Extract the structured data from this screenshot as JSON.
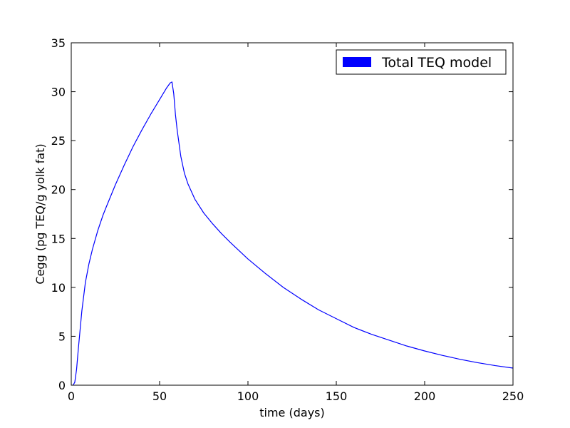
{
  "chart_data": {
    "type": "line",
    "title": "",
    "xlabel": "time (days)",
    "ylabel": "Cegg (pg TEQ/g yolk fat)",
    "xlim": [
      0,
      250
    ],
    "ylim": [
      0,
      35
    ],
    "xticks": [
      0,
      50,
      100,
      150,
      200,
      250
    ],
    "yticks": [
      0,
      5,
      10,
      15,
      20,
      25,
      30,
      35
    ],
    "grid": false,
    "legend_position": "top-right",
    "series": [
      {
        "name": "Total TEQ model",
        "color": "#0000ff",
        "x": [
          1,
          2,
          3,
          4,
          6,
          8,
          10,
          12,
          15,
          18,
          20,
          25,
          30,
          35,
          40,
          45,
          50,
          54,
          56,
          57,
          58,
          59,
          60,
          62,
          64,
          66,
          68,
          70,
          75,
          80,
          85,
          90,
          100,
          110,
          120,
          130,
          140,
          150,
          160,
          170,
          180,
          190,
          200,
          210,
          220,
          230,
          240,
          250
        ],
        "y": [
          0.0,
          0.3,
          1.6,
          3.7,
          7.6,
          10.5,
          12.4,
          13.9,
          15.8,
          17.4,
          18.3,
          20.5,
          22.5,
          24.4,
          26.1,
          27.7,
          29.2,
          30.4,
          30.9,
          31.0,
          29.8,
          27.6,
          26.0,
          23.4,
          21.7,
          20.6,
          19.8,
          19.0,
          17.6,
          16.5,
          15.5,
          14.6,
          12.9,
          11.4,
          10.0,
          8.8,
          7.7,
          6.8,
          5.9,
          5.2,
          4.6,
          4.0,
          3.5,
          3.05,
          2.65,
          2.3,
          2.0,
          1.75
        ]
      }
    ]
  }
}
